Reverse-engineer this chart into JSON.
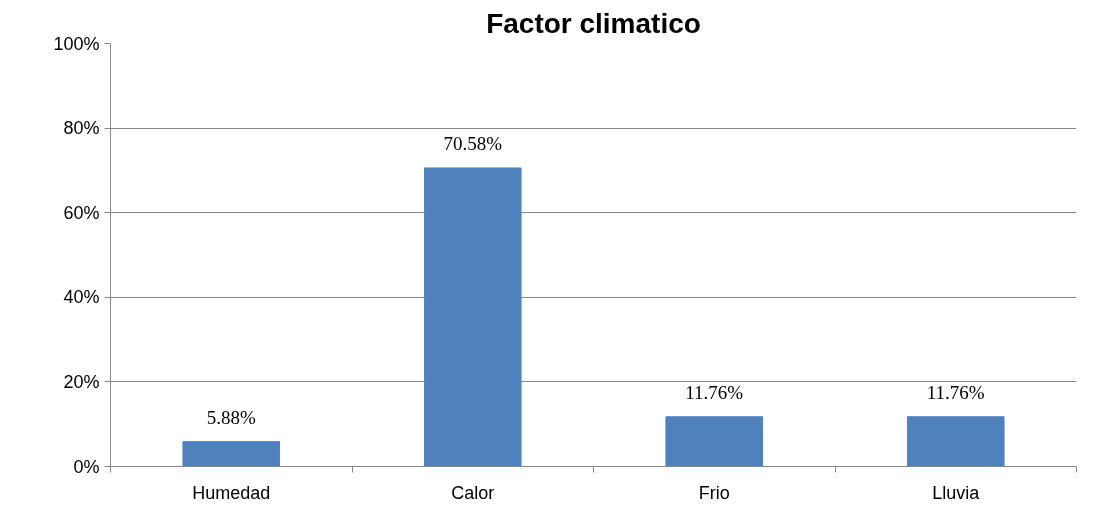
{
  "chart_data": {
    "type": "bar",
    "title": "Factor climatico",
    "categories": [
      "Humedad",
      "Calor",
      "Frio",
      "Lluvia"
    ],
    "values": [
      5.88,
      70.58,
      11.76,
      11.76
    ],
    "value_labels": [
      "5.88%",
      "70.58%",
      "11.76%",
      "11.76%"
    ],
    "color": "#4f81bd",
    "ylim": [
      0,
      100
    ],
    "yticks": [
      {
        "value": 0,
        "label": "0%"
      },
      {
        "value": 20,
        "label": "20%"
      },
      {
        "value": 40,
        "label": "40%"
      },
      {
        "value": 60,
        "label": "60%"
      },
      {
        "value": 80,
        "label": "80%"
      },
      {
        "value": 100,
        "label": "100%"
      }
    ],
    "grid": "y"
  }
}
